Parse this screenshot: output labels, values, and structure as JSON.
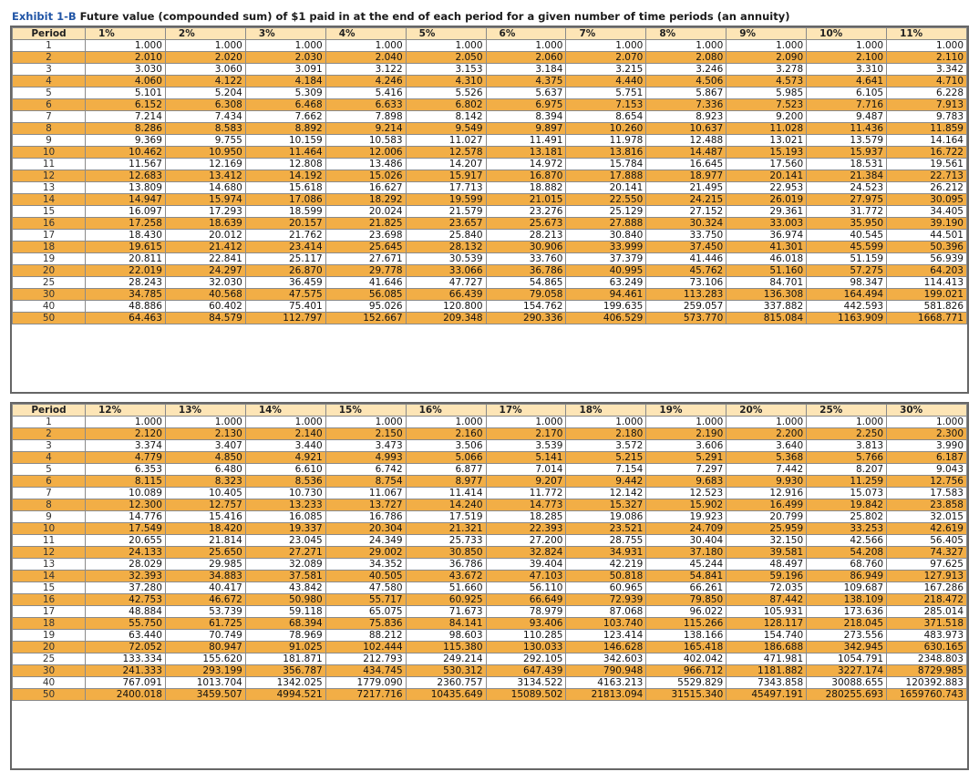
{
  "title": {
    "exhibit": "Exhibit 1-B",
    "text": "Future value (compounded sum) of $1 paid in at the end of each period for a given number of time periods (an annuity)"
  },
  "period_label": "Period",
  "colors": {
    "header_bg": "#fde5b6",
    "alt_row_bg": "#f2ae46",
    "exhibit_blue": "#2155a6"
  },
  "tables": [
    {
      "rates": [
        "1%",
        "2%",
        "3%",
        "4%",
        "5%",
        "6%",
        "7%",
        "8%",
        "9%",
        "10%",
        "11%"
      ],
      "rows": [
        {
          "p": "1",
          "v": [
            "1.000",
            "1.000",
            "1.000",
            "1.000",
            "1.000",
            "1.000",
            "1.000",
            "1.000",
            "1.000",
            "1.000",
            "1.000"
          ]
        },
        {
          "p": "2",
          "v": [
            "2.010",
            "2.020",
            "2.030",
            "2.040",
            "2.050",
            "2.060",
            "2.070",
            "2.080",
            "2.090",
            "2.100",
            "2.110"
          ]
        },
        {
          "p": "3",
          "v": [
            "3.030",
            "3.060",
            "3.091",
            "3.122",
            "3.153",
            "3.184",
            "3.215",
            "3.246",
            "3.278",
            "3.310",
            "3.342"
          ]
        },
        {
          "p": "4",
          "v": [
            "4.060",
            "4.122",
            "4.184",
            "4.246",
            "4.310",
            "4.375",
            "4.440",
            "4.506",
            "4.573",
            "4.641",
            "4.710"
          ]
        },
        {
          "p": "5",
          "v": [
            "5.101",
            "5.204",
            "5.309",
            "5.416",
            "5.526",
            "5.637",
            "5.751",
            "5.867",
            "5.985",
            "6.105",
            "6.228"
          ]
        },
        {
          "p": "6",
          "v": [
            "6.152",
            "6.308",
            "6.468",
            "6.633",
            "6.802",
            "6.975",
            "7.153",
            "7.336",
            "7.523",
            "7.716",
            "7.913"
          ]
        },
        {
          "p": "7",
          "v": [
            "7.214",
            "7.434",
            "7.662",
            "7.898",
            "8.142",
            "8.394",
            "8.654",
            "8.923",
            "9.200",
            "9.487",
            "9.783"
          ]
        },
        {
          "p": "8",
          "v": [
            "8.286",
            "8.583",
            "8.892",
            "9.214",
            "9.549",
            "9.897",
            "10.260",
            "10.637",
            "11.028",
            "11.436",
            "11.859"
          ]
        },
        {
          "p": "9",
          "v": [
            "9.369",
            "9.755",
            "10.159",
            "10.583",
            "11.027",
            "11.491",
            "11.978",
            "12.488",
            "13.021",
            "13.579",
            "14.164"
          ]
        },
        {
          "p": "10",
          "v": [
            "10.462",
            "10.950",
            "11.464",
            "12.006",
            "12.578",
            "13.181",
            "13.816",
            "14.487",
            "15.193",
            "15.937",
            "16.722"
          ]
        },
        {
          "p": "11",
          "v": [
            "11.567",
            "12.169",
            "12.808",
            "13.486",
            "14.207",
            "14.972",
            "15.784",
            "16.645",
            "17.560",
            "18.531",
            "19.561"
          ]
        },
        {
          "p": "12",
          "v": [
            "12.683",
            "13.412",
            "14.192",
            "15.026",
            "15.917",
            "16.870",
            "17.888",
            "18.977",
            "20.141",
            "21.384",
            "22.713"
          ]
        },
        {
          "p": "13",
          "v": [
            "13.809",
            "14.680",
            "15.618",
            "16.627",
            "17.713",
            "18.882",
            "20.141",
            "21.495",
            "22.953",
            "24.523",
            "26.212"
          ]
        },
        {
          "p": "14",
          "v": [
            "14.947",
            "15.974",
            "17.086",
            "18.292",
            "19.599",
            "21.015",
            "22.550",
            "24.215",
            "26.019",
            "27.975",
            "30.095"
          ]
        },
        {
          "p": "15",
          "v": [
            "16.097",
            "17.293",
            "18.599",
            "20.024",
            "21.579",
            "23.276",
            "25.129",
            "27.152",
            "29.361",
            "31.772",
            "34.405"
          ]
        },
        {
          "p": "16",
          "v": [
            "17.258",
            "18.639",
            "20.157",
            "21.825",
            "23.657",
            "25.673",
            "27.888",
            "30.324",
            "33.003",
            "35.950",
            "39.190"
          ]
        },
        {
          "p": "17",
          "v": [
            "18.430",
            "20.012",
            "21.762",
            "23.698",
            "25.840",
            "28.213",
            "30.840",
            "33.750",
            "36.974",
            "40.545",
            "44.501"
          ]
        },
        {
          "p": "18",
          "v": [
            "19.615",
            "21.412",
            "23.414",
            "25.645",
            "28.132",
            "30.906",
            "33.999",
            "37.450",
            "41.301",
            "45.599",
            "50.396"
          ]
        },
        {
          "p": "19",
          "v": [
            "20.811",
            "22.841",
            "25.117",
            "27.671",
            "30.539",
            "33.760",
            "37.379",
            "41.446",
            "46.018",
            "51.159",
            "56.939"
          ]
        },
        {
          "p": "20",
          "v": [
            "22.019",
            "24.297",
            "26.870",
            "29.778",
            "33.066",
            "36.786",
            "40.995",
            "45.762",
            "51.160",
            "57.275",
            "64.203"
          ]
        },
        {
          "p": "25",
          "v": [
            "28.243",
            "32.030",
            "36.459",
            "41.646",
            "47.727",
            "54.865",
            "63.249",
            "73.106",
            "84.701",
            "98.347",
            "114.413"
          ]
        },
        {
          "p": "30",
          "v": [
            "34.785",
            "40.568",
            "47.575",
            "56.085",
            "66.439",
            "79.058",
            "94.461",
            "113.283",
            "136.308",
            "164.494",
            "199.021"
          ]
        },
        {
          "p": "40",
          "v": [
            "48.886",
            "60.402",
            "75.401",
            "95.026",
            "120.800",
            "154.762",
            "199.635",
            "259.057",
            "337.882",
            "442.593",
            "581.826"
          ]
        },
        {
          "p": "50",
          "v": [
            "64.463",
            "84.579",
            "112.797",
            "152.667",
            "209.348",
            "290.336",
            "406.529",
            "573.770",
            "815.084",
            "1163.909",
            "1668.771"
          ]
        }
      ]
    },
    {
      "rates": [
        "12%",
        "13%",
        "14%",
        "15%",
        "16%",
        "17%",
        "18%",
        "19%",
        "20%",
        "25%",
        "30%"
      ],
      "rows": [
        {
          "p": "1",
          "v": [
            "1.000",
            "1.000",
            "1.000",
            "1.000",
            "1.000",
            "1.000",
            "1.000",
            "1.000",
            "1.000",
            "1.000",
            "1.000"
          ]
        },
        {
          "p": "2",
          "v": [
            "2.120",
            "2.130",
            "2.140",
            "2.150",
            "2.160",
            "2.170",
            "2.180",
            "2.190",
            "2.200",
            "2.250",
            "2.300"
          ]
        },
        {
          "p": "3",
          "v": [
            "3.374",
            "3.407",
            "3.440",
            "3.473",
            "3.506",
            "3.539",
            "3.572",
            "3.606",
            "3.640",
            "3.813",
            "3.990"
          ]
        },
        {
          "p": "4",
          "v": [
            "4.779",
            "4.850",
            "4.921",
            "4.993",
            "5.066",
            "5.141",
            "5.215",
            "5.291",
            "5.368",
            "5.766",
            "6.187"
          ]
        },
        {
          "p": "5",
          "v": [
            "6.353",
            "6.480",
            "6.610",
            "6.742",
            "6.877",
            "7.014",
            "7.154",
            "7.297",
            "7.442",
            "8.207",
            "9.043"
          ]
        },
        {
          "p": "6",
          "v": [
            "8.115",
            "8.323",
            "8.536",
            "8.754",
            "8.977",
            "9.207",
            "9.442",
            "9.683",
            "9.930",
            "11.259",
            "12.756"
          ]
        },
        {
          "p": "7",
          "v": [
            "10.089",
            "10.405",
            "10.730",
            "11.067",
            "11.414",
            "11.772",
            "12.142",
            "12.523",
            "12.916",
            "15.073",
            "17.583"
          ]
        },
        {
          "p": "8",
          "v": [
            "12.300",
            "12.757",
            "13.233",
            "13.727",
            "14.240",
            "14.773",
            "15.327",
            "15.902",
            "16.499",
            "19.842",
            "23.858"
          ]
        },
        {
          "p": "9",
          "v": [
            "14.776",
            "15.416",
            "16.085",
            "16.786",
            "17.519",
            "18.285",
            "19.086",
            "19.923",
            "20.799",
            "25.802",
            "32.015"
          ]
        },
        {
          "p": "10",
          "v": [
            "17.549",
            "18.420",
            "19.337",
            "20.304",
            "21.321",
            "22.393",
            "23.521",
            "24.709",
            "25.959",
            "33.253",
            "42.619"
          ]
        },
        {
          "p": "11",
          "v": [
            "20.655",
            "21.814",
            "23.045",
            "24.349",
            "25.733",
            "27.200",
            "28.755",
            "30.404",
            "32.150",
            "42.566",
            "56.405"
          ]
        },
        {
          "p": "12",
          "v": [
            "24.133",
            "25.650",
            "27.271",
            "29.002",
            "30.850",
            "32.824",
            "34.931",
            "37.180",
            "39.581",
            "54.208",
            "74.327"
          ]
        },
        {
          "p": "13",
          "v": [
            "28.029",
            "29.985",
            "32.089",
            "34.352",
            "36.786",
            "39.404",
            "42.219",
            "45.244",
            "48.497",
            "68.760",
            "97.625"
          ]
        },
        {
          "p": "14",
          "v": [
            "32.393",
            "34.883",
            "37.581",
            "40.505",
            "43.672",
            "47.103",
            "50.818",
            "54.841",
            "59.196",
            "86.949",
            "127.913"
          ]
        },
        {
          "p": "15",
          "v": [
            "37.280",
            "40.417",
            "43.842",
            "47.580",
            "51.660",
            "56.110",
            "60.965",
            "66.261",
            "72.035",
            "109.687",
            "167.286"
          ]
        },
        {
          "p": "16",
          "v": [
            "42.753",
            "46.672",
            "50.980",
            "55.717",
            "60.925",
            "66.649",
            "72.939",
            "79.850",
            "87.442",
            "138.109",
            "218.472"
          ]
        },
        {
          "p": "17",
          "v": [
            "48.884",
            "53.739",
            "59.118",
            "65.075",
            "71.673",
            "78.979",
            "87.068",
            "96.022",
            "105.931",
            "173.636",
            "285.014"
          ]
        },
        {
          "p": "18",
          "v": [
            "55.750",
            "61.725",
            "68.394",
            "75.836",
            "84.141",
            "93.406",
            "103.740",
            "115.266",
            "128.117",
            "218.045",
            "371.518"
          ]
        },
        {
          "p": "19",
          "v": [
            "63.440",
            "70.749",
            "78.969",
            "88.212",
            "98.603",
            "110.285",
            "123.414",
            "138.166",
            "154.740",
            "273.556",
            "483.973"
          ]
        },
        {
          "p": "20",
          "v": [
            "72.052",
            "80.947",
            "91.025",
            "102.444",
            "115.380",
            "130.033",
            "146.628",
            "165.418",
            "186.688",
            "342.945",
            "630.165"
          ]
        },
        {
          "p": "25",
          "v": [
            "133.334",
            "155.620",
            "181.871",
            "212.793",
            "249.214",
            "292.105",
            "342.603",
            "402.042",
            "471.981",
            "1054.791",
            "2348.803"
          ]
        },
        {
          "p": "30",
          "v": [
            "241.333",
            "293.199",
            "356.787",
            "434.745",
            "530.312",
            "647.439",
            "790.948",
            "966.712",
            "1181.882",
            "3227.174",
            "8729.985"
          ]
        },
        {
          "p": "40",
          "v": [
            "767.091",
            "1013.704",
            "1342.025",
            "1779.090",
            "2360.757",
            "3134.522",
            "4163.213",
            "5529.829",
            "7343.858",
            "30088.655",
            "120392.883"
          ]
        },
        {
          "p": "50",
          "v": [
            "2400.018",
            "3459.507",
            "4994.521",
            "7217.716",
            "10435.649",
            "15089.502",
            "21813.094",
            "31515.340",
            "45497.191",
            "280255.693",
            "1659760.743"
          ]
        }
      ]
    }
  ]
}
